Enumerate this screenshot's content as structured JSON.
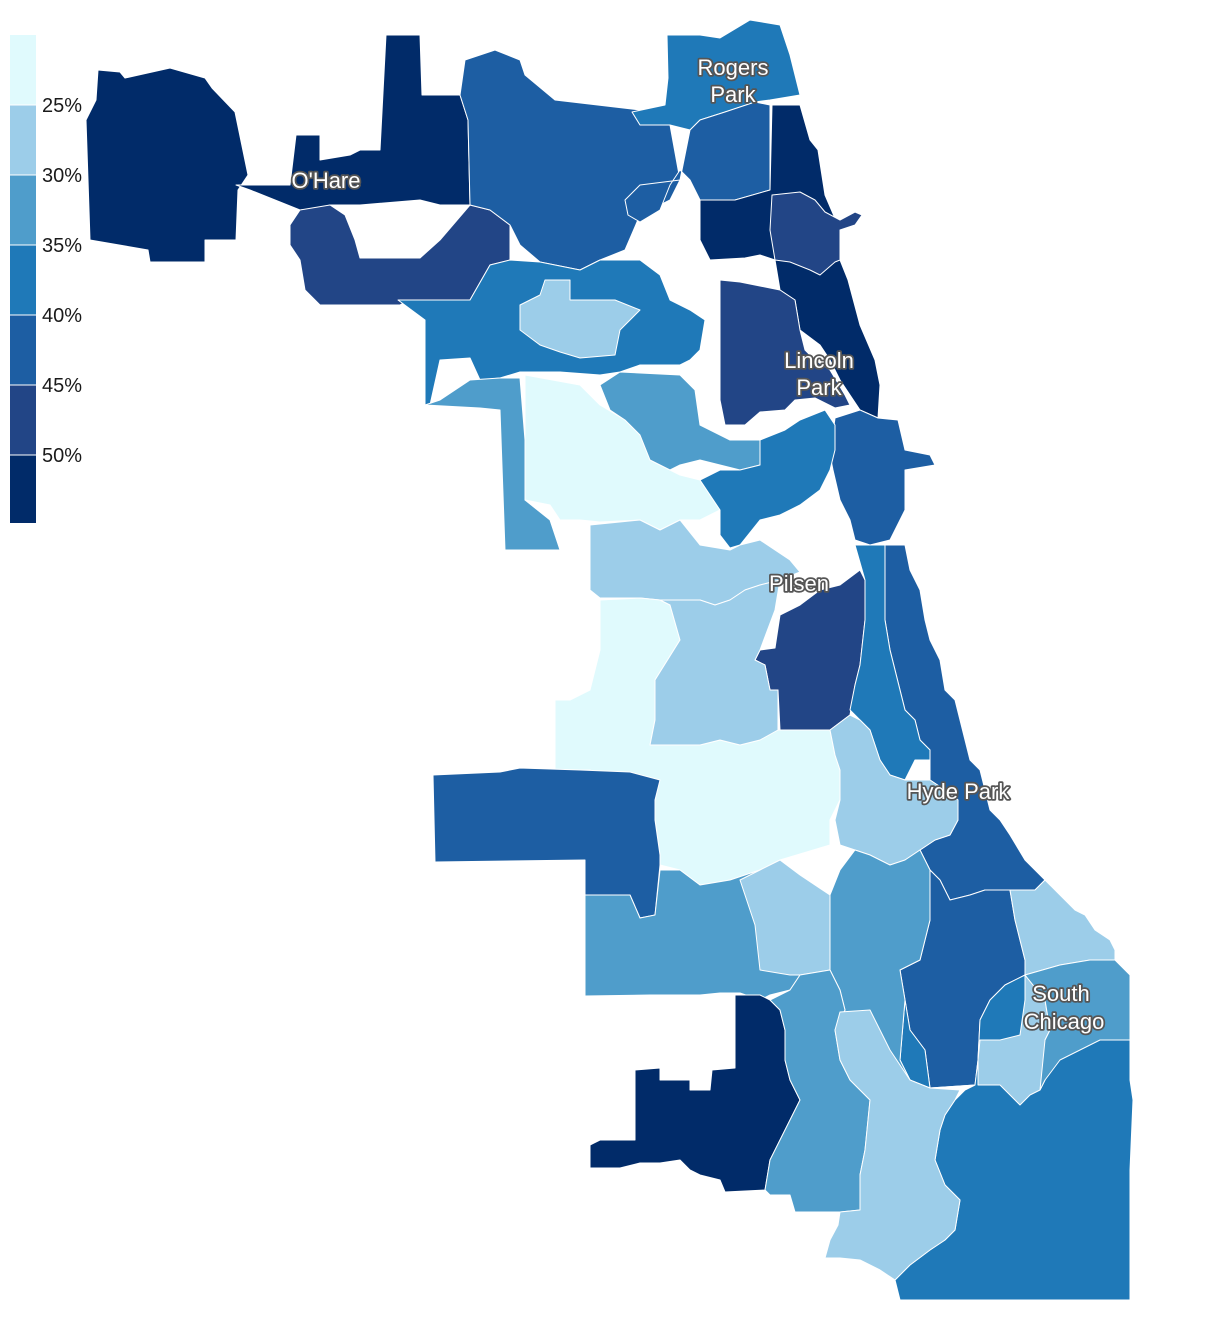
{
  "legend": {
    "colors": [
      "#e0fafd",
      "#9ccde9",
      "#4f9dcb",
      "#1f79b8",
      "#1d5ea3",
      "#224586",
      "#012b69"
    ],
    "labels": [
      "25%",
      "30%",
      "35%",
      "40%",
      "45%",
      "50%"
    ]
  },
  "places": {
    "ohare": "O'Hare",
    "rogers_park_1": "Rogers",
    "rogers_park_2": "Park",
    "lincoln_park_1": "Lincoln",
    "lincoln_park_2": "Park",
    "pilsen": "Pilsen",
    "hyde_park": "Hyde Park",
    "south_chicago_1": "South",
    "south_chicago_2": "Chicago"
  },
  "regions": [
    {
      "name": "ohare-west",
      "level": 6
    },
    {
      "name": "ohare-east",
      "level": 6
    },
    {
      "name": "far-northwest",
      "level": 5
    },
    {
      "name": "northwest-upper",
      "level": 4
    },
    {
      "name": "northwest-mid",
      "level": 3
    },
    {
      "name": "northwest-light",
      "level": 1
    },
    {
      "name": "west-side-north",
      "level": 2
    },
    {
      "name": "west-side-lightest",
      "level": 0
    },
    {
      "name": "near-west",
      "level": 2
    },
    {
      "name": "rogers-park",
      "level": 3
    },
    {
      "name": "edgewater",
      "level": 4
    },
    {
      "name": "north-lakefront",
      "level": 6
    },
    {
      "name": "lincoln-square",
      "level": 5
    },
    {
      "name": "lincoln-park",
      "level": 5
    },
    {
      "name": "loop",
      "level": 4
    },
    {
      "name": "west-town",
      "level": 3
    },
    {
      "name": "pilsen-area",
      "level": 1
    },
    {
      "name": "bridgeport",
      "level": 5
    },
    {
      "name": "near-south-lakefront",
      "level": 4
    },
    {
      "name": "bronzeville",
      "level": 3
    },
    {
      "name": "southwest-lightest",
      "level": 0
    },
    {
      "name": "southwest-light",
      "level": 1
    },
    {
      "name": "southwest-side",
      "level": 4
    },
    {
      "name": "southwest-mid",
      "level": 2
    },
    {
      "name": "englewood",
      "level": 1
    },
    {
      "name": "hyde-park",
      "level": 1
    },
    {
      "name": "woodlawn",
      "level": 4
    },
    {
      "name": "south-shore-mid",
      "level": 3
    },
    {
      "name": "south-central",
      "level": 2
    },
    {
      "name": "south-chicago-light",
      "level": 1
    },
    {
      "name": "far-southwest",
      "level": 6
    },
    {
      "name": "roseland",
      "level": 2
    },
    {
      "name": "pullman",
      "level": 1
    },
    {
      "name": "far-southeast",
      "level": 2
    }
  ]
}
